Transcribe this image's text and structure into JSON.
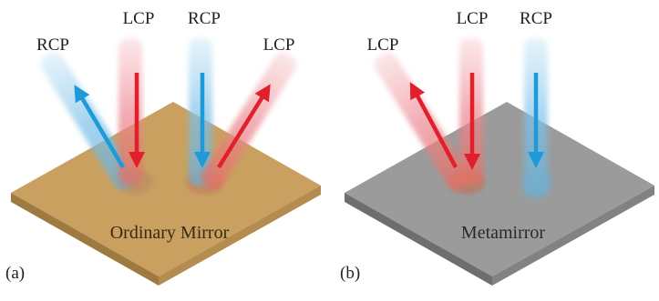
{
  "panel_a": {
    "tag": "(a)",
    "mirror_label": "Ordinary Mirror",
    "beam_labels": [
      "RCP",
      "LCP",
      "RCP",
      "LCP"
    ]
  },
  "panel_b": {
    "tag": "(b)",
    "mirror_label": "Metamirror",
    "beam_labels": [
      "LCP",
      "LCP",
      "RCP"
    ]
  },
  "colors": {
    "lcp": "#e0202a",
    "rcp": "#1e9ad8",
    "ordinary_mirror": "#c8a060",
    "metamirror": "#9a9a9a"
  }
}
